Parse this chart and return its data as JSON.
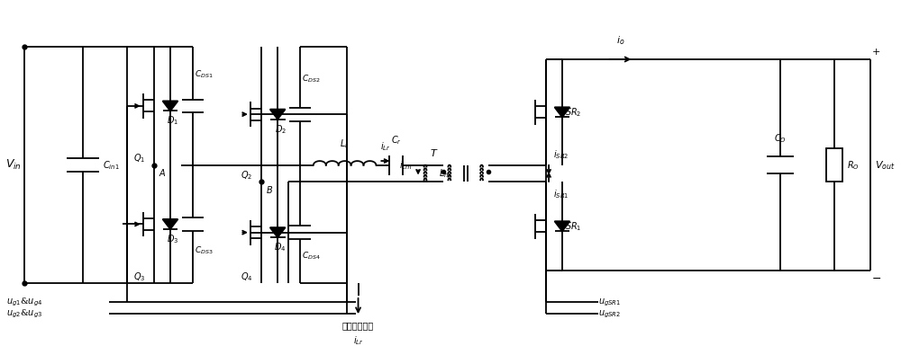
{
  "bg_color": "#ffffff",
  "line_color": "#000000",
  "lw": 1.3,
  "fig_width": 10.0,
  "fig_height": 3.85
}
